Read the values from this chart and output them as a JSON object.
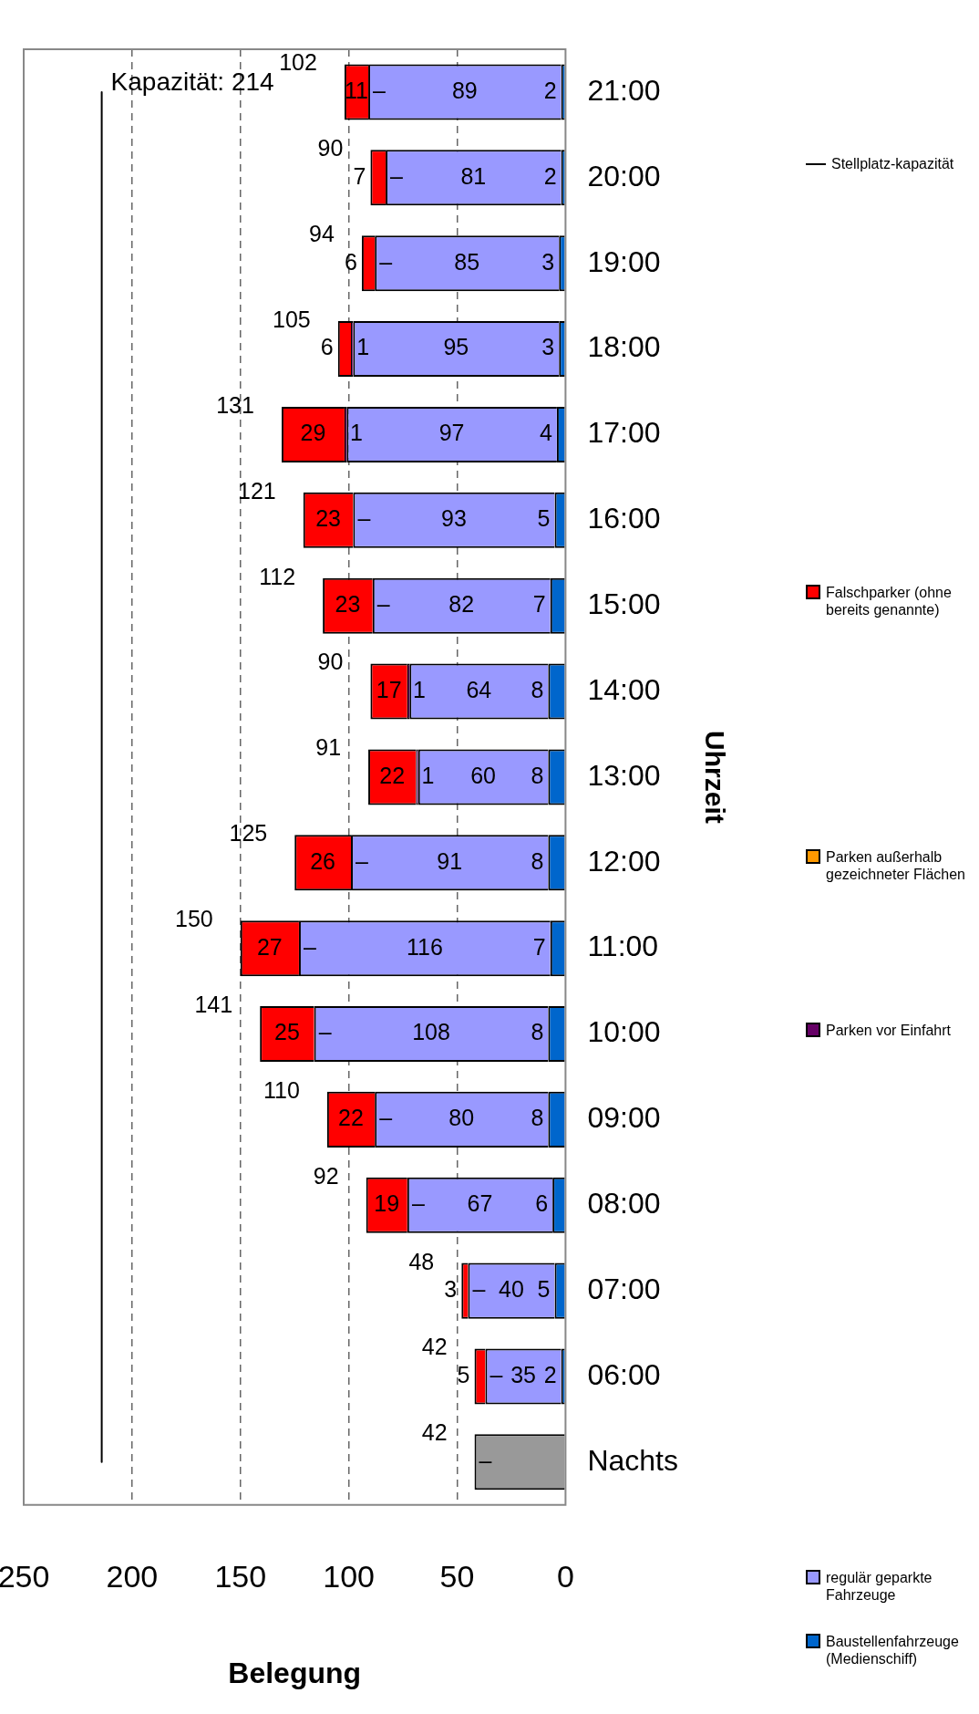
{
  "chart_data": {
    "type": "bar",
    "stacked": true,
    "orientation": "horizontal",
    "xlabel": "Belegung",
    "ylabel": "Uhrzeit",
    "categories": [
      "21:00",
      "20:00",
      "19:00",
      "18:00",
      "17:00",
      "16:00",
      "15:00",
      "14:00",
      "13:00",
      "12:00",
      "11:00",
      "10:00",
      "09:00",
      "08:00",
      "07:00",
      "06:00",
      "Nachts"
    ],
    "series": [
      {
        "color": "#999999",
        "values": [
          null,
          null,
          null,
          null,
          null,
          null,
          null,
          null,
          null,
          null,
          null,
          null,
          null,
          null,
          null,
          null,
          42
        ]
      },
      {
        "name": "Baustellenfahrzeuge (Medienschiff)",
        "color": "#0066cc",
        "values": [
          2,
          2,
          3,
          3,
          4,
          5,
          7,
          8,
          8,
          8,
          7,
          8,
          8,
          6,
          5,
          2,
          null
        ],
        "value_labels": [
          "2",
          "2",
          "3",
          "3",
          "4",
          "5",
          "7",
          "8",
          "8",
          "8",
          "7",
          "8",
          "8",
          "6",
          "5",
          "2",
          null
        ]
      },
      {
        "name": "regulär geparkte Fahrzeuge",
        "color": "#9999ff",
        "values": [
          89,
          81,
          85,
          95,
          97,
          93,
          82,
          64,
          60,
          91,
          116,
          108,
          80,
          67,
          40,
          35,
          null
        ],
        "value_labels": [
          "89",
          "81",
          "85",
          "95",
          "97",
          "93",
          "82",
          "64",
          "60",
          "91",
          "116",
          "108",
          "80",
          "67",
          "40",
          "35",
          null
        ]
      },
      {
        "name": "Parken vor Einfahrt",
        "color": "#660066",
        "values": [
          0,
          0,
          0,
          1,
          1,
          0,
          0,
          1,
          1,
          0,
          0,
          0,
          0,
          0,
          0,
          0,
          0
        ],
        "value_labels": [
          "–",
          "–",
          "–",
          "1",
          "1",
          "–",
          "–",
          "1",
          "1",
          "–",
          "–",
          "–",
          "–",
          "–",
          "–",
          "–",
          "–"
        ]
      },
      {
        "name": "Parken außerhalb gezeichneter Flächen",
        "color": "#ff9900",
        "values": [
          null,
          null,
          null,
          null,
          null,
          null,
          null,
          null,
          null,
          null,
          null,
          null,
          null,
          null,
          null,
          null,
          null
        ]
      },
      {
        "name": "Falschparker (ohne bereits genannte)",
        "color": "#ff0000",
        "values": [
          11,
          7,
          6,
          6,
          29,
          23,
          23,
          17,
          22,
          26,
          27,
          25,
          22,
          19,
          3,
          5,
          null
        ],
        "value_labels": [
          "11",
          "7",
          "6",
          "6",
          "29",
          "23",
          "23",
          "17",
          "22",
          "26",
          "27",
          "25",
          "22",
          "19",
          "3",
          "5",
          null
        ]
      },
      {
        "name": "Stellplatz-kapazität",
        "type": "line",
        "color": "#000000",
        "marker": "none",
        "values": [
          214,
          214,
          214,
          214,
          214,
          214,
          214,
          214,
          214,
          214,
          214,
          214,
          214,
          214,
          214,
          214,
          214
        ]
      }
    ],
    "totals": [
      "102",
      "90",
      "94",
      "105",
      "131",
      "121",
      "112",
      "90",
      "91",
      "125",
      "150",
      "141",
      "110",
      "92",
      "48",
      "42",
      "42"
    ],
    "annotations": [
      {
        "text": "Kapazität: 214",
        "x": 214,
        "y": "21:00"
      }
    ],
    "xlim": [
      250,
      0
    ],
    "xticks": [
      0,
      50,
      100,
      150,
      200,
      250
    ],
    "grid": "x",
    "legend": "right"
  }
}
